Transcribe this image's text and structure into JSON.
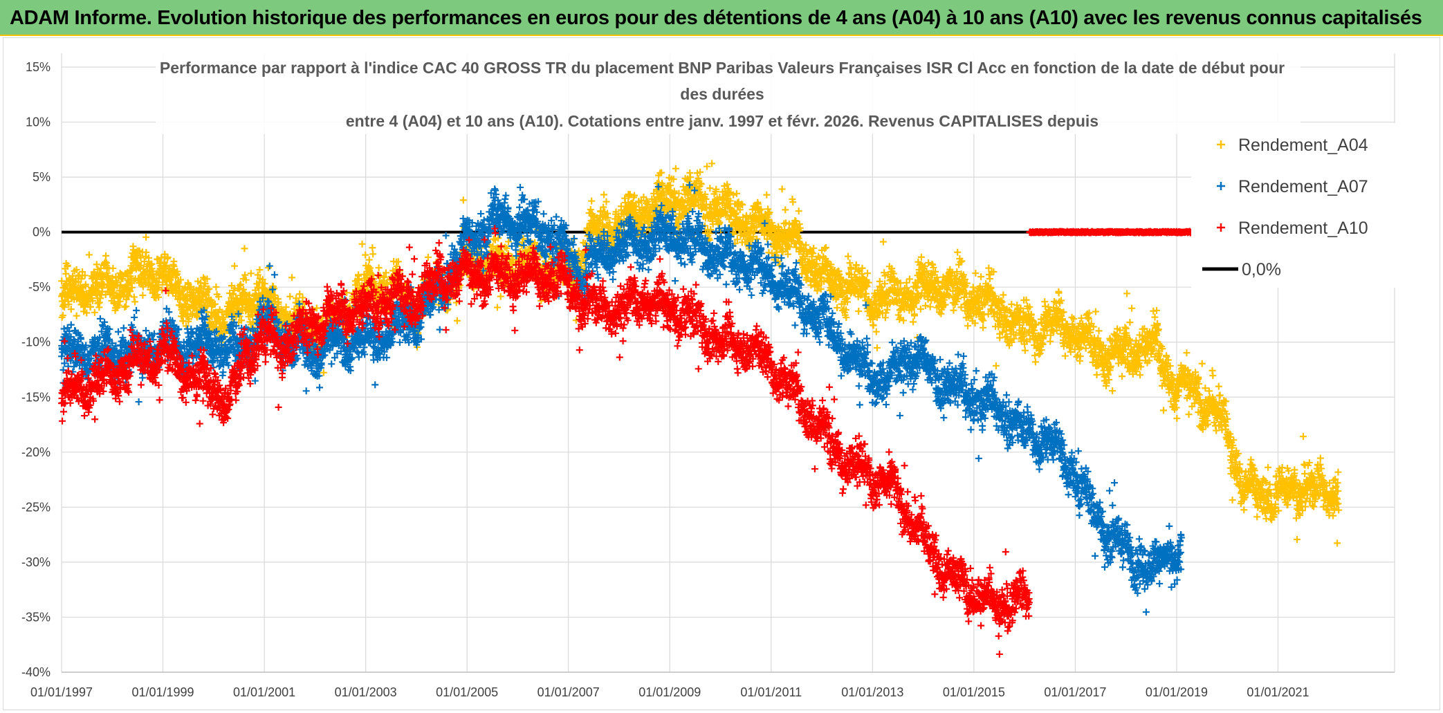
{
  "header": {
    "title": "ADAM Informe. Evolution historique des performances en euros pour des détentions de 4 ans (A04) à 10 ans (A10) avec les revenus connus capitalisés"
  },
  "chart_data": {
    "type": "scatter",
    "title_lines": [
      "Performance  par rapport à l'indice CAC 40 GROSS TR  du placement BNP Paribas Valeurs Françaises ISR Cl Acc en fonction de la date de début pour",
      "des durées",
      "entre 4 (A04) et 10 ans (A10). Cotations entre janv. 1997 et févr. 2026. Revenus CAPITALISES depuis"
    ],
    "x_range": [
      1997.0,
      2023.3
    ],
    "x_tick_labels": [
      "01/01/1997",
      "01/01/1999",
      "01/01/2001",
      "01/01/2003",
      "01/01/2005",
      "01/01/2007",
      "01/01/2009",
      "01/01/2011",
      "01/01/2013",
      "01/01/2015",
      "01/01/2017",
      "01/01/2019",
      "01/01/2021"
    ],
    "x_tick_values": [
      1997,
      1999,
      2001,
      2003,
      2005,
      2007,
      2009,
      2011,
      2013,
      2015,
      2017,
      2019,
      2021
    ],
    "y_range": [
      -40,
      15
    ],
    "y_tick_labels": [
      "15%",
      "10%",
      "5%",
      "0%",
      "-5%",
      "-10%",
      "-15%",
      "-20%",
      "-25%",
      "-30%",
      "-35%",
      "-40%"
    ],
    "y_tick_values": [
      15,
      10,
      5,
      0,
      -5,
      -10,
      -15,
      -20,
      -25,
      -30,
      -35,
      -40
    ],
    "grid": true,
    "legend_position": "right",
    "legend": [
      "Rendement_A04",
      "Rendement_A07",
      "Rendement_A10",
      "0,0%"
    ],
    "series": [
      {
        "name": "Rendement_A04",
        "color": "#ffc000",
        "marker": "+",
        "x_end": 2022.2,
        "trend": [
          [
            1997.0,
            -6
          ],
          [
            1997.5,
            -5
          ],
          [
            1998.0,
            -5
          ],
          [
            1998.5,
            -4
          ],
          [
            1999.0,
            -4
          ],
          [
            1999.5,
            -6
          ],
          [
            2000.0,
            -7
          ],
          [
            2000.3,
            -8
          ],
          [
            2000.6,
            -6
          ],
          [
            2001.0,
            -6
          ],
          [
            2001.5,
            -8
          ],
          [
            2002.0,
            -9
          ],
          [
            2002.5,
            -8
          ],
          [
            2003.0,
            -5
          ],
          [
            2003.5,
            -5
          ],
          [
            2004.0,
            -7
          ],
          [
            2004.5,
            -5
          ],
          [
            2005.0,
            -3
          ],
          [
            2005.5,
            -3
          ],
          [
            2006.0,
            -3
          ],
          [
            2006.5,
            -3
          ],
          [
            2007.0,
            -4
          ],
          [
            2007.5,
            0
          ],
          [
            2008.0,
            1
          ],
          [
            2008.5,
            2
          ],
          [
            2009.0,
            3
          ],
          [
            2009.5,
            3
          ],
          [
            2010.0,
            2
          ],
          [
            2010.5,
            1
          ],
          [
            2011.0,
            0
          ],
          [
            2011.5,
            -1
          ],
          [
            2012.0,
            -4
          ],
          [
            2012.5,
            -5
          ],
          [
            2013.0,
            -6
          ],
          [
            2013.5,
            -6
          ],
          [
            2014.0,
            -5
          ],
          [
            2014.5,
            -5
          ],
          [
            2015.0,
            -6
          ],
          [
            2015.5,
            -7
          ],
          [
            2016.0,
            -9
          ],
          [
            2016.5,
            -8
          ],
          [
            2017.0,
            -9
          ],
          [
            2017.5,
            -11
          ],
          [
            2018.0,
            -11
          ],
          [
            2018.5,
            -10
          ],
          [
            2019.0,
            -14
          ],
          [
            2019.5,
            -15
          ],
          [
            2020.0,
            -18
          ],
          [
            2020.3,
            -23
          ],
          [
            2020.7,
            -24
          ],
          [
            2021.0,
            -24
          ],
          [
            2021.5,
            -23
          ],
          [
            2022.0,
            -24
          ],
          [
            2022.2,
            -23
          ]
        ]
      },
      {
        "name": "Rendement_A07",
        "color": "#0070c0",
        "marker": "+",
        "x_end": 2019.1,
        "trend": [
          [
            1997.0,
            -11
          ],
          [
            1997.5,
            -11
          ],
          [
            1998.0,
            -11
          ],
          [
            1998.5,
            -11
          ],
          [
            1999.0,
            -10
          ],
          [
            1999.5,
            -10
          ],
          [
            2000.0,
            -10
          ],
          [
            2000.5,
            -11
          ],
          [
            2001.0,
            -8
          ],
          [
            2001.5,
            -10
          ],
          [
            2002.0,
            -11
          ],
          [
            2002.5,
            -10
          ],
          [
            2003.0,
            -10
          ],
          [
            2003.5,
            -9
          ],
          [
            2004.0,
            -8
          ],
          [
            2004.5,
            -5
          ],
          [
            2005.0,
            -1
          ],
          [
            2005.5,
            1
          ],
          [
            2006.0,
            1
          ],
          [
            2006.5,
            0
          ],
          [
            2007.0,
            -2
          ],
          [
            2007.3,
            -4
          ],
          [
            2007.6,
            -2
          ],
          [
            2008.0,
            -1
          ],
          [
            2008.5,
            -1
          ],
          [
            2009.0,
            0
          ],
          [
            2009.5,
            -1
          ],
          [
            2010.0,
            -2
          ],
          [
            2010.5,
            -3
          ],
          [
            2011.0,
            -4
          ],
          [
            2011.5,
            -6
          ],
          [
            2012.0,
            -8
          ],
          [
            2012.5,
            -11
          ],
          [
            2013.0,
            -13
          ],
          [
            2013.3,
            -14
          ],
          [
            2013.6,
            -11
          ],
          [
            2014.0,
            -12
          ],
          [
            2014.5,
            -14
          ],
          [
            2015.0,
            -15
          ],
          [
            2015.5,
            -16
          ],
          [
            2016.0,
            -18
          ],
          [
            2016.5,
            -19
          ],
          [
            2017.0,
            -22
          ],
          [
            2017.3,
            -25
          ],
          [
            2017.6,
            -27
          ],
          [
            2018.0,
            -29
          ],
          [
            2018.5,
            -31
          ],
          [
            2018.8,
            -29
          ],
          [
            2019.1,
            -30
          ]
        ]
      },
      {
        "name": "Rendement_A10",
        "color": "#ff0000",
        "marker": "+",
        "x_end": 2016.1,
        "trend": [
          [
            1997.0,
            -15
          ],
          [
            1997.5,
            -14
          ],
          [
            1998.0,
            -13
          ],
          [
            1998.5,
            -12
          ],
          [
            1999.0,
            -11
          ],
          [
            1999.5,
            -13
          ],
          [
            2000.0,
            -14
          ],
          [
            2000.3,
            -16
          ],
          [
            2000.6,
            -11
          ],
          [
            2001.0,
            -10
          ],
          [
            2001.5,
            -10
          ],
          [
            2002.0,
            -8
          ],
          [
            2002.5,
            -7
          ],
          [
            2003.0,
            -7
          ],
          [
            2003.5,
            -6
          ],
          [
            2004.0,
            -6
          ],
          [
            2004.5,
            -4
          ],
          [
            2005.0,
            -4
          ],
          [
            2005.5,
            -4
          ],
          [
            2006.0,
            -4
          ],
          [
            2006.5,
            -4
          ],
          [
            2007.0,
            -5
          ],
          [
            2007.5,
            -7
          ],
          [
            2008.0,
            -7
          ],
          [
            2008.5,
            -6
          ],
          [
            2009.0,
            -7
          ],
          [
            2009.5,
            -8
          ],
          [
            2010.0,
            -10
          ],
          [
            2010.5,
            -10
          ],
          [
            2011.0,
            -12
          ],
          [
            2011.5,
            -15
          ],
          [
            2012.0,
            -18
          ],
          [
            2012.5,
            -21
          ],
          [
            2013.0,
            -22
          ],
          [
            2013.5,
            -24
          ],
          [
            2014.0,
            -28
          ],
          [
            2014.5,
            -31
          ],
          [
            2015.0,
            -33
          ],
          [
            2015.5,
            -34
          ],
          [
            2016.0,
            -33
          ],
          [
            2016.1,
            -35
          ]
        ]
      },
      {
        "name": "0,0%",
        "color": "#000000",
        "type": "line",
        "x": [
          1997.0,
          2016.1
        ],
        "y": [
          0,
          0
        ]
      }
    ],
    "zero_markers": {
      "color": "#ff0000",
      "x_start": 2016.1,
      "x_end": 2019.3,
      "y": 0
    }
  }
}
